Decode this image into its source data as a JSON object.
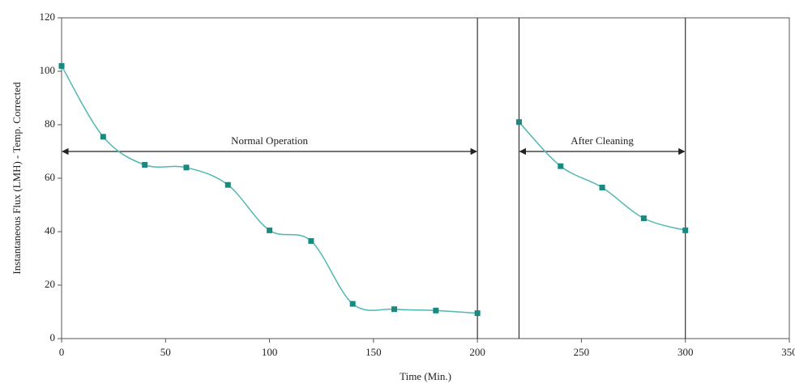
{
  "chart_data": {
    "type": "line",
    "xlabel": "Time (Min.)",
    "ylabel": "Instantaneous Flux (LMH) - Temp. Corrected",
    "xlim": [
      0,
      350
    ],
    "xticks": [
      0,
      50,
      100,
      150,
      200,
      250,
      300,
      350
    ],
    "ylim": [
      0,
      120
    ],
    "yticks": [
      0,
      20,
      40,
      60,
      80,
      100,
      120
    ],
    "series": [
      {
        "color": "#1a8a80",
        "x": [
          0,
          20,
          40,
          60,
          80,
          100,
          120,
          140,
          160,
          180,
          200
        ],
        "values": [
          102,
          75.5,
          65,
          64,
          57.5,
          40.5,
          36.5,
          13,
          11,
          10.5,
          9.5
        ]
      },
      {
        "color": "#1a8a80",
        "x": [
          220,
          240,
          260,
          280,
          300
        ],
        "values": [
          81,
          64.5,
          56.5,
          45,
          40.5
        ]
      }
    ],
    "vlines": [
      200,
      220,
      300
    ],
    "annotations": [
      {
        "text": "Normal Operation",
        "x": [
          0,
          200
        ],
        "y": 70
      },
      {
        "text": "After Cleaning",
        "x": [
          220,
          300
        ],
        "y": 70
      }
    ]
  }
}
